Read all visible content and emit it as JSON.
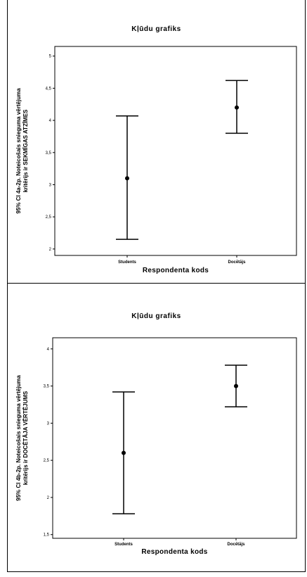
{
  "chart_data": [
    {
      "type": "errorbar",
      "title": "Kļūdu grafiks",
      "xlabel": "Respondenta kods",
      "ylabel_line1": "95% CI 4a-2p. Noteicošais snieguma vērtējuma",
      "ylabel_line2": "kritērijs ir SEKMĪGAS ATZĪMES",
      "categories": [
        "Students",
        "Docētājs"
      ],
      "ylim": [
        1.9,
        5.15
      ],
      "yticks": [
        2,
        2.5,
        3,
        3.5,
        4,
        4.5,
        5
      ],
      "ytick_labels": [
        "2",
        "2,5",
        "3",
        "3,5",
        "4",
        "4,5",
        "5"
      ],
      "means": [
        3.1,
        4.2
      ],
      "lower": [
        2.15,
        3.8
      ],
      "upper": [
        4.07,
        4.62
      ]
    },
    {
      "type": "errorbar",
      "title": "Kļūdu grafiks",
      "xlabel": "Respondenta kods",
      "ylabel_line1": "95% CI 4b-2p. Noteicošais snieguma vērtējuma",
      "ylabel_line2": "kritērijs ir DOCĒTĀJA VĒRTĒJUMS",
      "categories": [
        "Students",
        "Docētājs"
      ],
      "ylim": [
        1.45,
        4.15
      ],
      "yticks": [
        1.5,
        2,
        2.5,
        3,
        3.5,
        4
      ],
      "ytick_labels": [
        "1,5",
        "2",
        "2,5",
        "3",
        "3,5",
        "4"
      ],
      "means": [
        2.6,
        3.5
      ],
      "lower": [
        1.78,
        3.22
      ],
      "upper": [
        3.42,
        3.78
      ]
    }
  ]
}
